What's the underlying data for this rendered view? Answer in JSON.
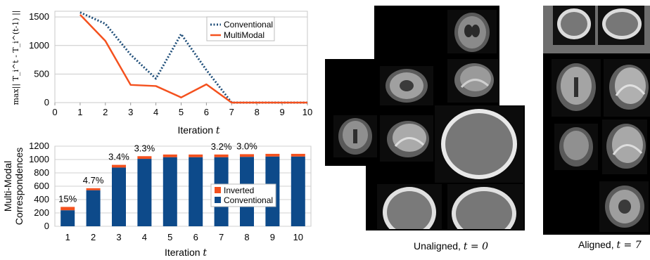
{
  "chart_data": [
    {
      "type": "line",
      "xlabel": "Iteration",
      "xlabel_var": "t",
      "ylabel": "max|| T",
      "ylabel_full": "max|| T_i^t - T_i^(t-1) ||",
      "xlim": [
        0,
        10
      ],
      "ylim": [
        0,
        1600
      ],
      "xticks": [
        "0",
        "1",
        "2",
        "3",
        "4",
        "5",
        "6",
        "7",
        "8",
        "9",
        "10"
      ],
      "yticks": [
        "0",
        "500",
        "1000",
        "1500"
      ],
      "x": [
        1,
        2,
        3,
        4,
        5,
        6,
        7,
        8,
        9,
        10
      ],
      "series": [
        {
          "name": "Conventional",
          "values": [
            1580,
            1380,
            840,
            420,
            1200,
            570,
            0,
            0,
            0,
            0
          ],
          "color": "#1f4e79",
          "style": "dotted"
        },
        {
          "name": "MultiModal",
          "values": [
            1540,
            1080,
            310,
            290,
            90,
            320,
            0,
            0,
            0,
            0
          ],
          "color": "#f4511e",
          "style": "solid"
        }
      ],
      "legend_position": "top-right",
      "grid": true
    },
    {
      "type": "bar",
      "stacked": true,
      "xlabel": "Iteration",
      "xlabel_var": "t",
      "ylabel_line1": "Multi-Modal",
      "ylabel_line2": "Correspondences",
      "categories": [
        "1",
        "2",
        "3",
        "4",
        "5",
        "6",
        "7",
        "8",
        "9",
        "10"
      ],
      "ylim": [
        0,
        1200
      ],
      "yticks": [
        "0",
        "200",
        "400",
        "600",
        "800",
        "1000",
        "1200"
      ],
      "series": [
        {
          "name": "Conventional",
          "values": [
            240,
            540,
            880,
            1010,
            1035,
            1035,
            1035,
            1040,
            1045,
            1045
          ],
          "color": "#0d4a8a"
        },
        {
          "name": "Inverted",
          "values": [
            50,
            30,
            40,
            40,
            40,
            40,
            40,
            40,
            40,
            40
          ],
          "color": "#f4511e"
        }
      ],
      "annotations": [
        {
          "category": "1",
          "text": "15%"
        },
        {
          "category": "2",
          "text": "4.7%"
        },
        {
          "category": "3",
          "text": "3.4%"
        },
        {
          "category": "4",
          "text": "3.3%"
        },
        {
          "category": "7",
          "text": "3.2%"
        },
        {
          "category": "8",
          "text": "3.0%"
        }
      ],
      "legend_position": "center-right",
      "grid": true
    }
  ],
  "captions": {
    "unaligned_text": "Unaligned, ",
    "unaligned_math": "t = 0",
    "aligned_text": "Aligned, ",
    "aligned_math": "t = 7"
  }
}
